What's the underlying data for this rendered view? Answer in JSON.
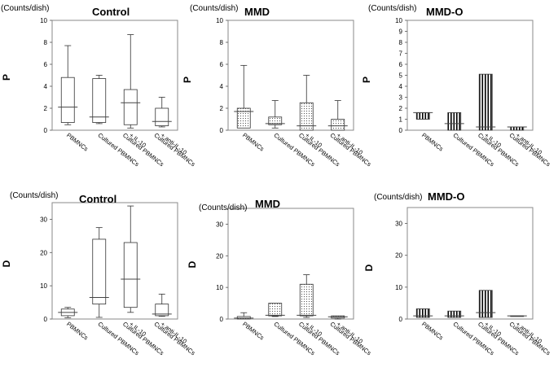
{
  "chart_data": [
    {
      "type": "boxplot",
      "title": "Control",
      "unit_label": "(Counts/dish)",
      "ylabel": "P",
      "ylim": [
        0,
        10
      ],
      "yticks": [
        "0",
        "2",
        "4",
        "6",
        "8",
        "10"
      ],
      "fill": "none",
      "categories": [
        [
          "PBMNCs"
        ],
        [
          "Cultured PBMNCs"
        ],
        [
          "Cultured PBMNCs",
          "+ IL-10"
        ],
        [
          "Cultured PBMNCs",
          "+ anti-IL-10"
        ]
      ],
      "boxes": [
        {
          "min": 0.5,
          "q1": 0.7,
          "median": 2.1,
          "q3": 4.8,
          "max": 7.7
        },
        {
          "min": 0.6,
          "q1": 0.7,
          "median": 1.2,
          "q3": 4.7,
          "max": 5.0
        },
        {
          "min": 0.2,
          "q1": 0.5,
          "median": 2.5,
          "q3": 3.7,
          "max": 8.7
        },
        {
          "min": 0.3,
          "q1": 0.4,
          "median": 0.8,
          "q3": 2.0,
          "max": 3.0
        }
      ]
    },
    {
      "type": "boxplot",
      "title": "MMD",
      "unit_label": "(Counts/dish)",
      "ylabel": "P",
      "ylim": [
        0,
        10
      ],
      "yticks": [
        "0",
        "2",
        "4",
        "6",
        "8",
        "10"
      ],
      "fill": "dots",
      "categories": [
        [
          "PBMNCs"
        ],
        [
          "Cultured PBMNCs"
        ],
        [
          "Cultured PBMNCs",
          "+ IL-10"
        ],
        [
          "Cultured PBMNCs",
          "+ anti-IL-10"
        ]
      ],
      "boxes": [
        {
          "min": 0.2,
          "q1": 0.2,
          "median": 1.7,
          "q3": 2.0,
          "max": 5.9
        },
        {
          "min": 0.2,
          "q1": 0.5,
          "median": 0.6,
          "q3": 1.2,
          "max": 2.7
        },
        {
          "min": 0.0,
          "q1": 0.0,
          "median": 0.4,
          "q3": 2.5,
          "max": 5.0
        },
        {
          "min": 0.0,
          "q1": 0.0,
          "median": 0.4,
          "q3": 1.0,
          "max": 2.7
        }
      ]
    },
    {
      "type": "boxplot",
      "title": "MMD-O",
      "unit_label": "(Counts/dish)",
      "ylabel": "P",
      "ylim": [
        0,
        10
      ],
      "yticks": [
        "0",
        "1",
        "2",
        "3",
        "4",
        "5",
        "6",
        "7",
        "8",
        "9",
        "10"
      ],
      "fill": "vstripes",
      "categories": [
        [
          "PBMNCs"
        ],
        [
          "Cultured PBMNCs"
        ],
        [
          "Cultured PBMNCs",
          "+ IL-10"
        ],
        [
          "Cultured PBMNCs",
          "+ anti-IL-10"
        ]
      ],
      "boxes": [
        {
          "min": 1.0,
          "q1": 1.0,
          "median": 1.6,
          "q3": 1.6,
          "max": 1.6
        },
        {
          "min": 0.0,
          "q1": 0.0,
          "median": 0.6,
          "q3": 1.6,
          "max": 1.6
        },
        {
          "min": 0.0,
          "q1": 0.0,
          "median": 0.3,
          "q3": 5.1,
          "max": 5.1
        },
        {
          "min": 0.0,
          "q1": 0.0,
          "median": 0.3,
          "q3": 0.3,
          "max": 0.3
        }
      ]
    },
    {
      "type": "boxplot",
      "title": "Control",
      "unit_label": "(Counts/dish)",
      "ylabel": "D",
      "ylim": [
        0,
        35
      ],
      "yticks": [
        "0",
        "10",
        "20",
        "30"
      ],
      "fill": "none",
      "categories": [
        [
          "PBMNCs"
        ],
        [
          "Cultured PBMNCs"
        ],
        [
          "Cultured PBMNCs",
          "+ IL-10"
        ],
        [
          "Cultured PBMNCs",
          "+ anti-IL-10"
        ]
      ],
      "boxes": [
        {
          "min": 0.4,
          "q1": 1.0,
          "median": 2.0,
          "q3": 3.0,
          "max": 3.5
        },
        {
          "min": 0.5,
          "q1": 4.5,
          "median": 6.5,
          "q3": 24.0,
          "max": 27.5
        },
        {
          "min": 2.0,
          "q1": 3.5,
          "median": 12.0,
          "q3": 23.0,
          "max": 34.0
        },
        {
          "min": 0.8,
          "q1": 1.0,
          "median": 1.5,
          "q3": 4.5,
          "max": 7.5
        }
      ]
    },
    {
      "type": "boxplot",
      "title": "MMD",
      "unit_label": "(Counts/dish)",
      "ylabel": "D",
      "ylim": [
        0,
        35
      ],
      "yticks": [
        "0",
        "10",
        "20",
        "30"
      ],
      "fill": "dots",
      "categories": [
        [
          "PBMNCs"
        ],
        [
          "Cultured PBMNCs"
        ],
        [
          "Cultured PBMNCs",
          "+ IL-10"
        ],
        [
          "Cultured PBMNCs",
          "+ anti-IL-10"
        ]
      ],
      "boxes": [
        {
          "min": 0.0,
          "q1": 0.0,
          "median": 0.3,
          "q3": 0.8,
          "max": 2.0
        },
        {
          "min": 0.8,
          "q1": 1.0,
          "median": 1.2,
          "q3": 5.0,
          "max": 5.0
        },
        {
          "min": 0.5,
          "q1": 1.0,
          "median": 1.2,
          "q3": 11.0,
          "max": 14.0
        },
        {
          "min": 0.0,
          "q1": 0.3,
          "median": 0.7,
          "q3": 1.0,
          "max": 1.0
        }
      ]
    },
    {
      "type": "boxplot",
      "title": "MMD-O",
      "unit_label": "(Counts/dish)",
      "ylabel": "D",
      "ylim": [
        0,
        35
      ],
      "yticks": [
        "0",
        "10",
        "20",
        "30"
      ],
      "fill": "vstripes",
      "categories": [
        [
          "PBMNCs"
        ],
        [
          "Cultured PBMNCs"
        ],
        [
          "Cultured PBMNCs",
          "+ IL-10"
        ],
        [
          "Cultured PBMNCs",
          "+ anti-IL-10"
        ]
      ],
      "boxes": [
        {
          "min": 0.5,
          "q1": 0.5,
          "median": 1.0,
          "q3": 3.2,
          "max": 3.2
        },
        {
          "min": 0.5,
          "q1": 0.5,
          "median": 1.0,
          "q3": 2.5,
          "max": 2.5
        },
        {
          "min": 0.5,
          "q1": 0.5,
          "median": 2.0,
          "q3": 9.0,
          "max": 9.0
        },
        {
          "min": 1.0,
          "q1": 1.0,
          "median": 1.0,
          "q3": 1.0,
          "max": 1.0
        }
      ]
    }
  ]
}
